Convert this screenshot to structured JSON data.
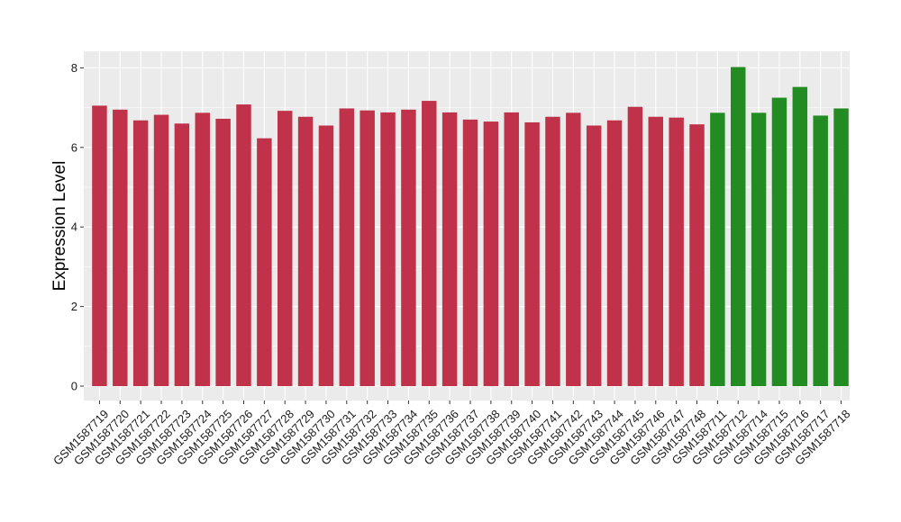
{
  "chart_data": {
    "type": "bar",
    "title": "",
    "xlabel": "",
    "ylabel": "Expression Level",
    "ylim": [
      0,
      8.3
    ],
    "yticks": [
      0,
      2,
      4,
      6,
      8
    ],
    "grid": true,
    "legend": "none",
    "colors": {
      "group_a": "#C0314A",
      "group_b": "#228B22",
      "panel": "#EBEBEB",
      "grid": "#FFFFFF"
    },
    "categories": [
      "GSM1587719",
      "GSM1587720",
      "GSM1587721",
      "GSM1587722",
      "GSM1587723",
      "GSM1587724",
      "GSM1587725",
      "GSM1587726",
      "GSM1587727",
      "GSM1587728",
      "GSM1587729",
      "GSM1587730",
      "GSM1587731",
      "GSM1587732",
      "GSM1587733",
      "GSM1587734",
      "GSM1587735",
      "GSM1587736",
      "GSM1587737",
      "GSM1587738",
      "GSM1587739",
      "GSM1587740",
      "GSM1587741",
      "GSM1587742",
      "GSM1587743",
      "GSM1587744",
      "GSM1587745",
      "GSM1587746",
      "GSM1587747",
      "GSM1587748",
      "GSM1587711",
      "GSM1587712",
      "GSM1587714",
      "GSM1587715",
      "GSM1587716",
      "GSM1587717",
      "GSM1587718"
    ],
    "values": [
      7.05,
      6.95,
      6.68,
      6.82,
      6.6,
      6.87,
      6.72,
      7.08,
      6.23,
      6.92,
      6.77,
      6.55,
      6.98,
      6.93,
      6.88,
      6.95,
      7.17,
      6.88,
      6.7,
      6.65,
      6.88,
      6.63,
      6.77,
      6.87,
      6.55,
      6.68,
      7.02,
      6.77,
      6.75,
      6.58,
      6.87,
      8.02,
      6.87,
      7.25,
      7.52,
      6.8,
      6.98
    ],
    "groups": [
      "a",
      "a",
      "a",
      "a",
      "a",
      "a",
      "a",
      "a",
      "a",
      "a",
      "a",
      "a",
      "a",
      "a",
      "a",
      "a",
      "a",
      "a",
      "a",
      "a",
      "a",
      "a",
      "a",
      "a",
      "a",
      "a",
      "a",
      "a",
      "a",
      "a",
      "b",
      "b",
      "b",
      "b",
      "b",
      "b",
      "b"
    ]
  }
}
